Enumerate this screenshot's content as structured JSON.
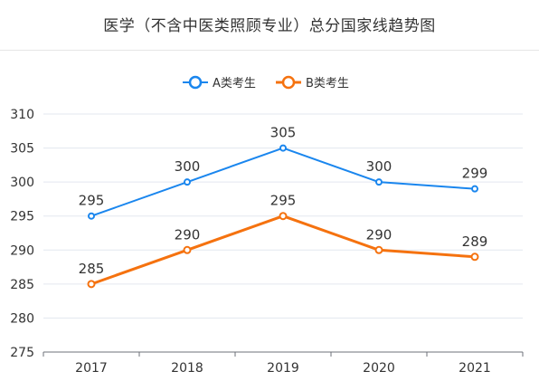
{
  "chart_data": {
    "type": "line",
    "title": "医学（不含中医类照顾专业）总分国家线趋势图",
    "categories": [
      "2017",
      "2018",
      "2019",
      "2020",
      "2021"
    ],
    "series": [
      {
        "name": "A类考生",
        "color": "#1a86ee",
        "values": [
          295,
          300,
          305,
          300,
          299
        ]
      },
      {
        "name": "B类考生",
        "color": "#f5720f",
        "values": [
          285,
          290,
          295,
          290,
          289
        ]
      }
    ],
    "yticks": [
      275,
      280,
      285,
      290,
      295,
      300,
      305,
      310
    ],
    "ylim": [
      275,
      310
    ],
    "xlabel": "",
    "ylabel": "",
    "grid": true,
    "legend_position": "top-center"
  }
}
